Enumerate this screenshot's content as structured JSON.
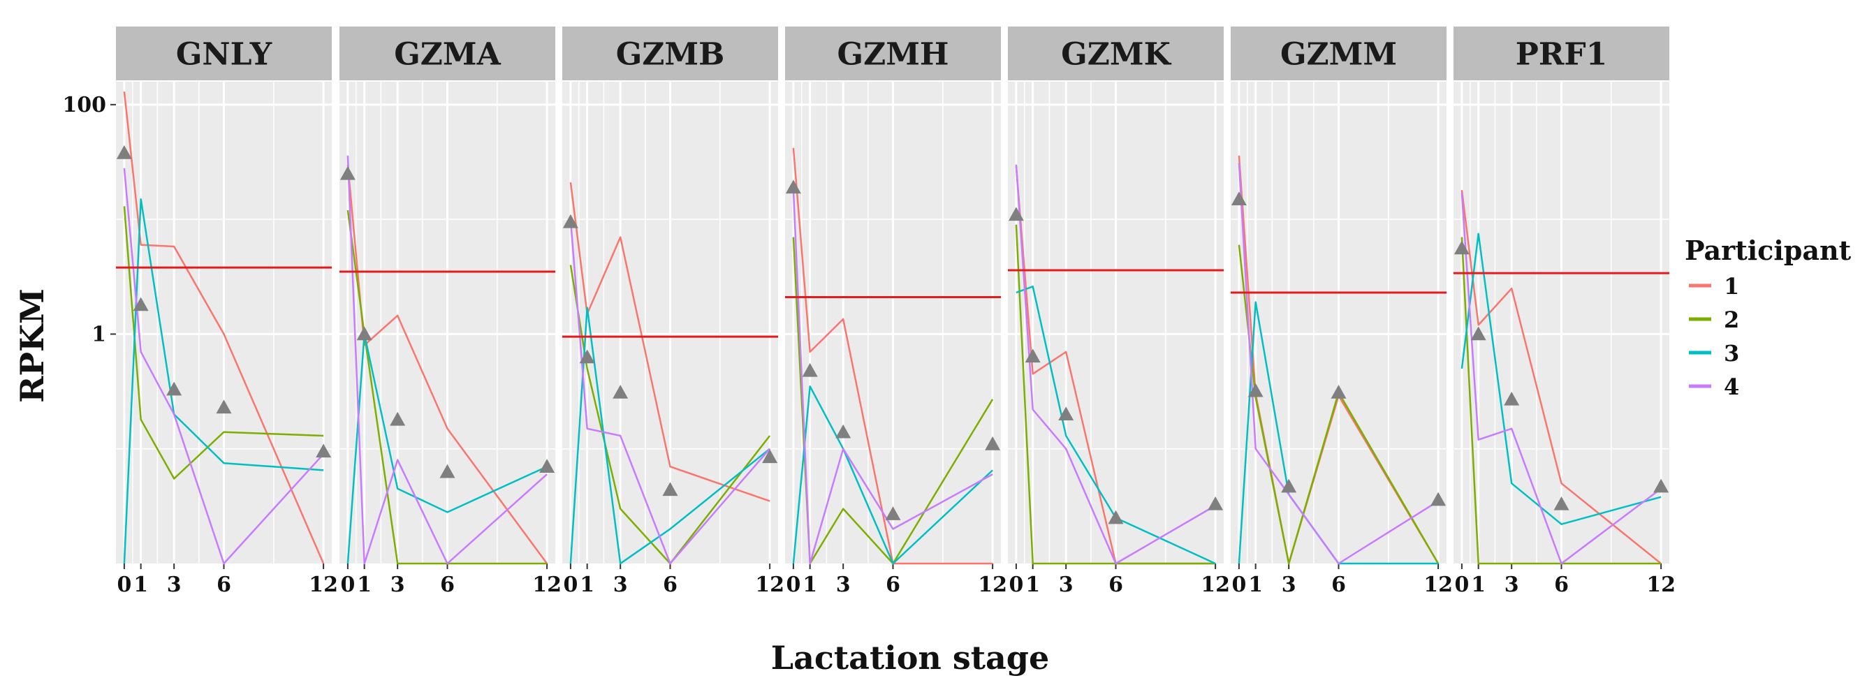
{
  "chart_data": {
    "type": "line",
    "xlabel": "Lactation stage",
    "ylabel": "RPKM",
    "y_scale": "log10",
    "y_ticks": [
      {
        "value": 100,
        "label": "100"
      },
      {
        "value": 1,
        "label": "1"
      }
    ],
    "ylim_log10": [
      -2.0,
      2.2
    ],
    "x_ticks": [
      0,
      1,
      3,
      6,
      12
    ],
    "xlim": [
      -0.5,
      12.5
    ],
    "legend": {
      "title": "Participant",
      "placement": "right",
      "entries": [
        {
          "name": "1",
          "color": "#F8766D"
        },
        {
          "name": "2",
          "color": "#7CAE00"
        },
        {
          "name": "3",
          "color": "#00BFC4"
        },
        {
          "name": "4",
          "color": "#C77CFF"
        }
      ]
    },
    "colors": {
      "panel_bg": "#EBEBEB",
      "grid": "#FFFFFF",
      "strip_bg": "#BDBDBD",
      "threshold": "#E41A1C",
      "triangle": "#7F7F7F"
    },
    "panels": [
      {
        "gene": "GNLY",
        "threshold": 3.8,
        "series": {
          "1": [
            130,
            6.0,
            5.8,
            1.0,
            0.01
          ],
          "2": [
            13,
            0.18,
            0.055,
            0.14,
            0.13
          ],
          "3": [
            0.01,
            15,
            0.2,
            0.075,
            0.065
          ],
          "4": [
            28,
            0.7,
            0.2,
            0.01,
            0.09
          ]
        },
        "triangles": [
          {
            "x": 0,
            "y": 38
          },
          {
            "x": 1,
            "y": 1.8
          },
          {
            "x": 3,
            "y": 0.33
          },
          {
            "x": 6,
            "y": 0.23
          },
          {
            "x": 12,
            "y": 0.095
          }
        ]
      },
      {
        "gene": "GZMA",
        "threshold": 3.5,
        "series": {
          "1": [
            30,
            0.8,
            1.45,
            0.15,
            0.01
          ],
          "2": [
            12,
            1.0,
            0.01,
            0.01,
            0.01
          ],
          "3": [
            0.01,
            1.0,
            0.045,
            0.028,
            0.07
          ],
          "4": [
            36,
            0.01,
            0.08,
            0.01,
            0.06
          ]
        },
        "triangles": [
          {
            "x": 0,
            "y": 25
          },
          {
            "x": 1,
            "y": 1.0
          },
          {
            "x": 3,
            "y": 0.18
          },
          {
            "x": 6,
            "y": 0.063
          },
          {
            "x": 12,
            "y": 0.07
          }
        ]
      },
      {
        "gene": "GZMB",
        "threshold": 0.95,
        "series": {
          "1": [
            21,
            1.5,
            7.0,
            0.07,
            0.035
          ],
          "2": [
            4.0,
            0.5,
            0.03,
            0.01,
            0.13
          ],
          "3": [
            0.01,
            1.7,
            0.01,
            0.02,
            0.1
          ],
          "4": [
            10,
            0.15,
            0.13,
            0.01,
            0.1
          ]
        },
        "triangles": [
          {
            "x": 0,
            "y": 9.5
          },
          {
            "x": 1,
            "y": 0.63
          },
          {
            "x": 3,
            "y": 0.31
          },
          {
            "x": 6,
            "y": 0.044
          },
          {
            "x": 12,
            "y": 0.085
          }
        ]
      },
      {
        "gene": "GZMH",
        "threshold": 2.1,
        "series": {
          "1": [
            42,
            0.7,
            1.35,
            0.01,
            0.01
          ],
          "2": [
            7.0,
            0.01,
            0.03,
            0.01,
            0.27
          ],
          "3": [
            0.01,
            0.35,
            0.1,
            0.01,
            0.065
          ],
          "4": [
            18,
            0.01,
            0.1,
            0.02,
            0.06
          ]
        },
        "triangles": [
          {
            "x": 0,
            "y": 19
          },
          {
            "x": 1,
            "y": 0.48
          },
          {
            "x": 3,
            "y": 0.14
          },
          {
            "x": 6,
            "y": 0.027
          },
          {
            "x": 12,
            "y": 0.11
          }
        ]
      },
      {
        "gene": "GZMK",
        "threshold": 3.6,
        "series": {
          "1": [
            29,
            0.45,
            0.7,
            0.01,
            0.01
          ],
          "2": [
            9.0,
            0.01,
            0.01,
            0.01,
            0.01
          ],
          "3": [
            2.3,
            2.6,
            0.13,
            0.025,
            0.01
          ],
          "4": [
            30,
            0.22,
            0.1,
            0.01,
            0.032
          ]
        },
        "triangles": [
          {
            "x": 0,
            "y": 11
          },
          {
            "x": 1,
            "y": 0.64
          },
          {
            "x": 3,
            "y": 0.2
          },
          {
            "x": 6,
            "y": 0.025
          },
          {
            "x": 12,
            "y": 0.033
          }
        ]
      },
      {
        "gene": "GZMM",
        "threshold": 2.3,
        "series": {
          "1": [
            36,
            0.3,
            0.01,
            0.29,
            0.01
          ],
          "2": [
            6.0,
            0.28,
            0.01,
            0.31,
            0.01
          ],
          "3": [
            0.01,
            1.9,
            0.04,
            0.01,
            0.01
          ],
          "4": [
            31,
            0.1,
            0.04,
            0.01,
            0.035
          ]
        },
        "triangles": [
          {
            "x": 0,
            "y": 15
          },
          {
            "x": 1,
            "y": 0.32
          },
          {
            "x": 3,
            "y": 0.047
          },
          {
            "x": 6,
            "y": 0.31
          },
          {
            "x": 12,
            "y": 0.036
          }
        ]
      },
      {
        "gene": "PRF1",
        "threshold": 3.4,
        "series": {
          "1": [
            18,
            1.2,
            2.5,
            0.05,
            0.01
          ],
          "2": [
            7.0,
            0.01,
            0.01,
            0.01,
            0.01
          ],
          "3": [
            0.5,
            7.5,
            0.05,
            0.022,
            0.038
          ],
          "4": [
            17,
            0.12,
            0.15,
            0.01,
            0.045
          ]
        },
        "triangles": [
          {
            "x": 0,
            "y": 5.6
          },
          {
            "x": 1,
            "y": 1.0
          },
          {
            "x": 3,
            "y": 0.27
          },
          {
            "x": 6,
            "y": 0.033
          },
          {
            "x": 12,
            "y": 0.047
          }
        ]
      }
    ]
  }
}
